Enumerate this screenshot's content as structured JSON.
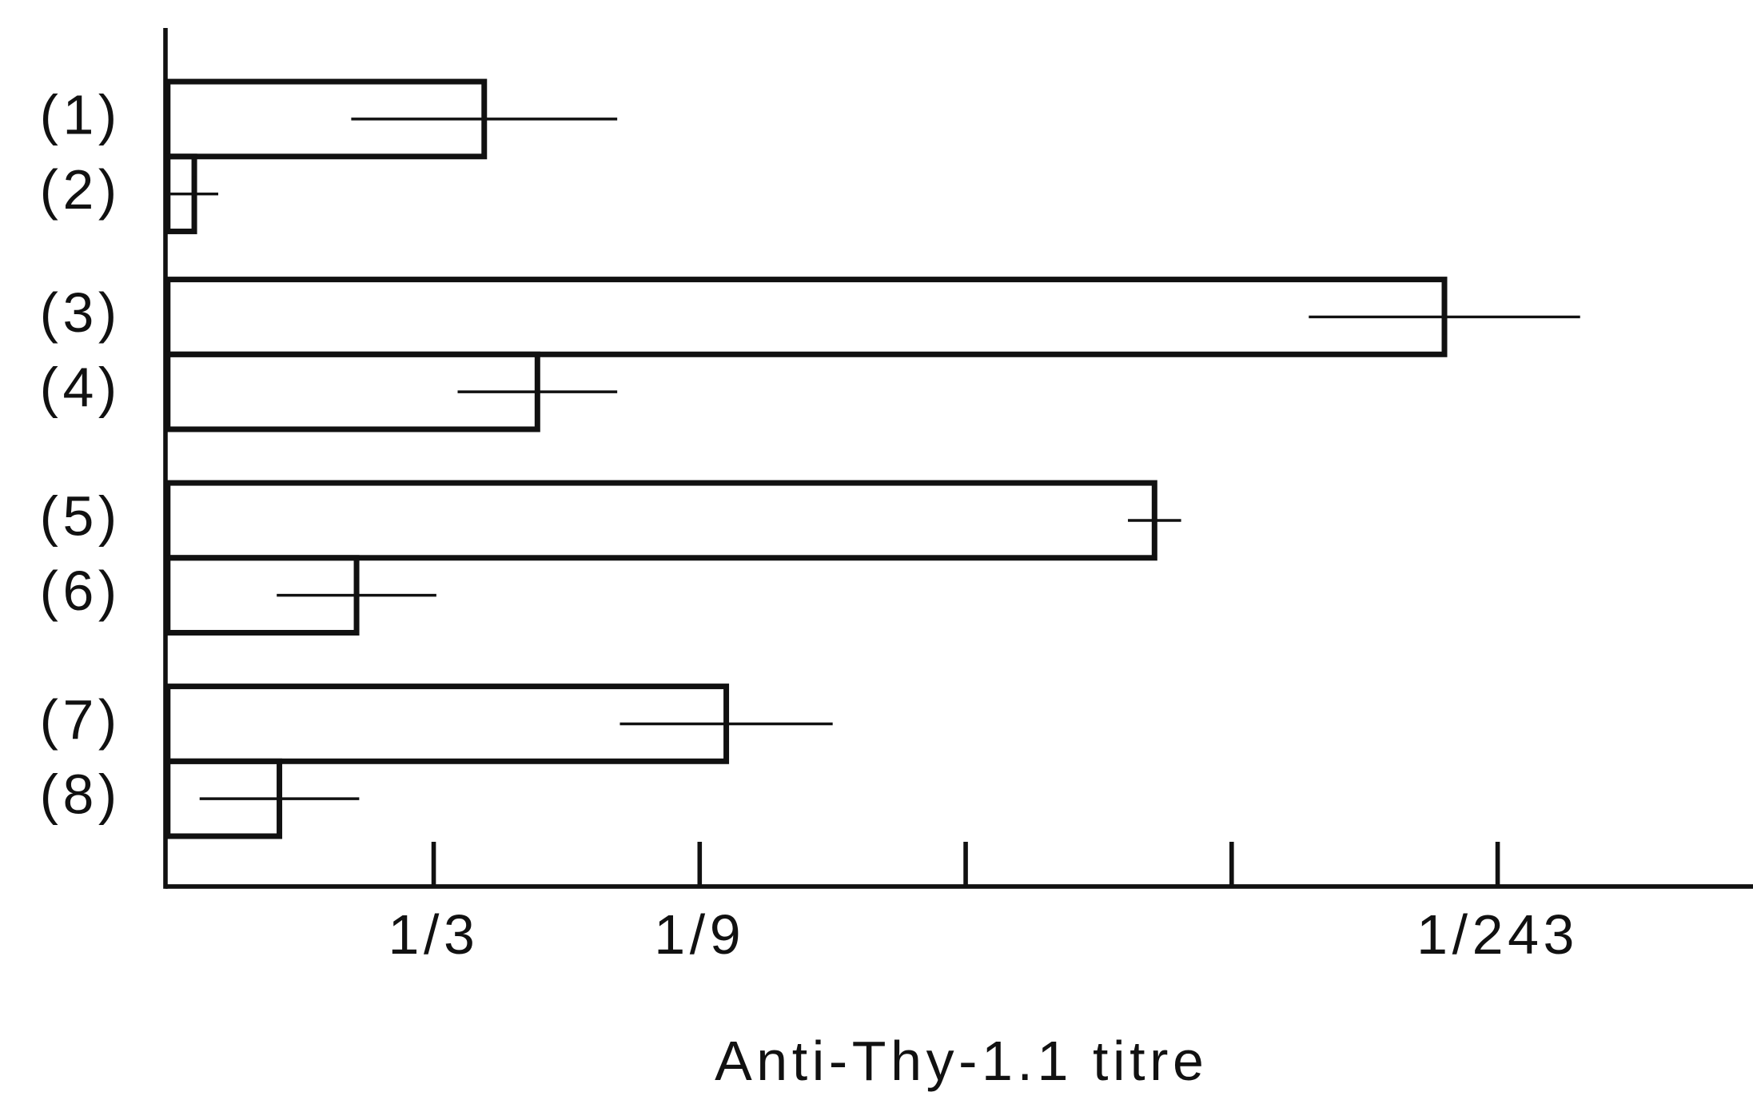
{
  "chart_data": {
    "type": "bar",
    "orientation": "horizontal",
    "x_label": "Anti-Thy-1.1 titre",
    "categories": [
      "(1)",
      "(2)",
      "(3)",
      "(4)",
      "(5)",
      "(6)",
      "(7)",
      "(8)"
    ],
    "values": [
      1.19,
      0.1,
      4.8,
      1.39,
      3.71,
      0.71,
      2.1,
      0.42
    ],
    "errors": [
      0.5,
      0.09,
      0.51,
      0.3,
      0.1,
      0.3,
      0.4,
      0.3
    ],
    "color": "#111111",
    "xlim": [
      0,
      5.96
    ],
    "xticks": [
      {
        "value": 1,
        "label": "1/3"
      },
      {
        "value": 2,
        "label": "1/9"
      },
      {
        "value": 3,
        "label": null
      },
      {
        "value": 4,
        "label": null
      },
      {
        "value": 5,
        "label": "1/243"
      }
    ],
    "grid": false
  }
}
